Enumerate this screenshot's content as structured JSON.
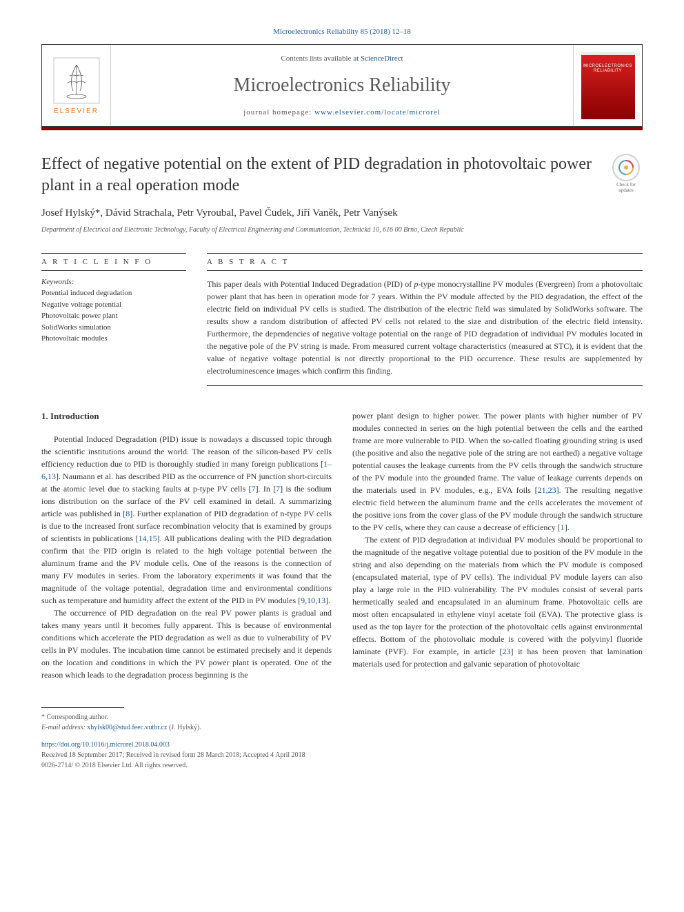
{
  "journal_header_link": "Microelectronics Reliability 85 (2018) 12–18",
  "header": {
    "elsevier_label": "ELSEVIER",
    "contents_prefix": "Contents lists available at ",
    "contents_link": "ScienceDirect",
    "journal_name": "Microelectronics Reliability",
    "homepage_prefix": "journal homepage: ",
    "homepage_link": "www.elsevier.com/locate/microrel",
    "cover_title_line1": "MICROELECTRONICS",
    "cover_title_line2": "RELIABILITY"
  },
  "check_updates": {
    "line1": "Check for",
    "line2": "updates"
  },
  "article": {
    "title": "Effect of negative potential on the extent of PID degradation in photovoltaic power plant in a real operation mode",
    "authors": "Josef Hylský*, Dávid Strachala, Petr Vyroubal, Pavel Čudek, Jiří Vaněk, Petr Vanýsek",
    "affiliation": "Department of Electrical and Electronic Technology, Faculty of Electrical Engineering and Communication, Technická 10, 616 00 Brno, Czech Republic"
  },
  "info": {
    "label": "A R T I C L E  I N F O",
    "keywords_label": "Keywords:",
    "keywords": [
      "Potential induced degradation",
      "Negative voltage potential",
      "Photovoltaic power plant",
      "SolidWorks simulation",
      "Photovoltaic modules"
    ]
  },
  "abstract": {
    "label": "A B S T R A C T",
    "text_1": "This paper deals with Potential Induced Degradation (PID) of ",
    "text_italic_1": "p",
    "text_2": "-type monocrystalline PV modules (Evergreen) from a photovoltaic power plant that has been in operation mode for 7 years. Within the PV module affected by the PID degradation, the effect of the electric field on individual PV cells is studied. The distribution of the electric field was simulated by SolidWorks software. The results show a random distribution of affected PV cells not related to the size and distribution of the electric field intensity. Furthermore, the dependencies of negative voltage potential on the range of PID degradation of individual PV modules located in the negative pole of the PV string is made. From measured current voltage characteristics (measured at STC), it is evident that the value of negative voltage potential is not directly proportional to the PID occurrence. These results are supplemented by electroluminescence images which confirm this finding."
  },
  "body": {
    "heading": "1. Introduction",
    "col1_p1_a": "Potential Induced Degradation (PID) issue is nowadays a discussed topic through the scientific institutions around the world. The reason of the silicon-based PV cells efficiency reduction due to PID is thoroughly studied in many foreign publications [",
    "col1_p1_cite1": "1–6,13",
    "col1_p1_b": "]. Naumann et al. has described PID as the occurrence of PN junction short-circuits at the atomic level due to stacking faults at ",
    "col1_p1_italic1": "p",
    "col1_p1_c": "-type PV cells [",
    "col1_p1_cite2": "7",
    "col1_p1_d": "]. In [",
    "col1_p1_cite3": "7",
    "col1_p1_e": "] is the sodium ions distribution on the surface of the PV cell examined in detail. A summarizing article was published in [",
    "col1_p1_cite4": "8",
    "col1_p1_f": "]. Further explanation of PID degradation of n-type PV cells is due to the increased front surface recombination velocity that is examined by groups of scientists in publications [",
    "col1_p1_cite5": "14,15",
    "col1_p1_g": "]. All publications dealing with the PID degradation confirm that the PID origin is related to the high voltage potential between the aluminum frame and the PV module cells. One of the reasons is the connection of many FV modules in series. From the laboratory experiments it was found that the magnitude of the voltage potential, degradation time and environmental conditions such as temperature and humidity affect the extent of the PID in PV modules [",
    "col1_p1_cite6": "9,10,13",
    "col1_p1_h": "].",
    "col1_p2": "The occurrence of PID degradation on the real PV power plants is gradual and takes many years until it becomes fully apparent. This is because of environmental conditions which accelerate the PID degradation as well as due to vulnerability of PV cells in PV modules. The incubation time cannot be estimated precisely and it depends on the location and conditions in which the PV power plant is operated. One of the reason which leads to the degradation process beginning is the",
    "col2_p1_a": "power plant design to higher power. The power plants with higher number of PV modules connected in series on the high potential between the cells and the earthed frame are more vulnerable to PID. When the so-called floating grounding string is used (the positive and also the negative pole of the string are not earthed) a negative voltage potential causes the leakage currents from the PV cells through the sandwich structure of the PV module into the grounded frame. The value of leakage currents depends on the materials used in PV modules, e.g., EVA foils [",
    "col2_p1_cite1": "21,23",
    "col2_p1_b": "]. The resulting negative electric field between the aluminum frame and the cells accelerates the movement of the positive ions from the cover glass of the PV module through the sandwich structure to the PV cells, where they can cause a decrease of efficiency [",
    "col2_p1_cite2": "1",
    "col2_p1_c": "].",
    "col2_p2_a": "The extent of PID degradation at individual PV modules should be proportional to the magnitude of the negative voltage potential due to position of the PV module in the string and also depending on the materials from which the PV module is composed (encapsulated material, type of PV cells). The individual PV module layers can also play a large role in the PID vulnerability. The PV modules consist of several parts hermetically sealed and encapsulated in an aluminum frame. Photovoltaic cells are most often encapsulated in ethylene vinyl acetate foil (EVA). The protective glass is used as the top layer for the protection of the photovoltaic cells against environmental effects. Bottom of the photovoltaic module is covered with the polyvinyl fluoride laminate (PVF). For example, in article [",
    "col2_p2_cite1": "23",
    "col2_p2_b": "] it has been proven that lamination materials used for protection and galvanic separation of photovoltaic"
  },
  "footer": {
    "corresponding": "* Corresponding author.",
    "email_label": "E-mail address: ",
    "email": "xhylsk00@stud.feec.vutbr.cz",
    "email_suffix": " (J. Hylský).",
    "doi": "https://doi.org/10.1016/j.microrel.2018.04.003",
    "received": "Received 18 September 2017; Received in revised form 28 March 2018; Accepted 4 April 2018",
    "issn_copyright": "0026-2714/ © 2018 Elsevier Ltd. All rights reserved."
  },
  "colors": {
    "link": "#1a5490",
    "accent": "#8b0000",
    "elsevier_orange": "#e8721f",
    "text": "#333333",
    "muted": "#555555"
  }
}
